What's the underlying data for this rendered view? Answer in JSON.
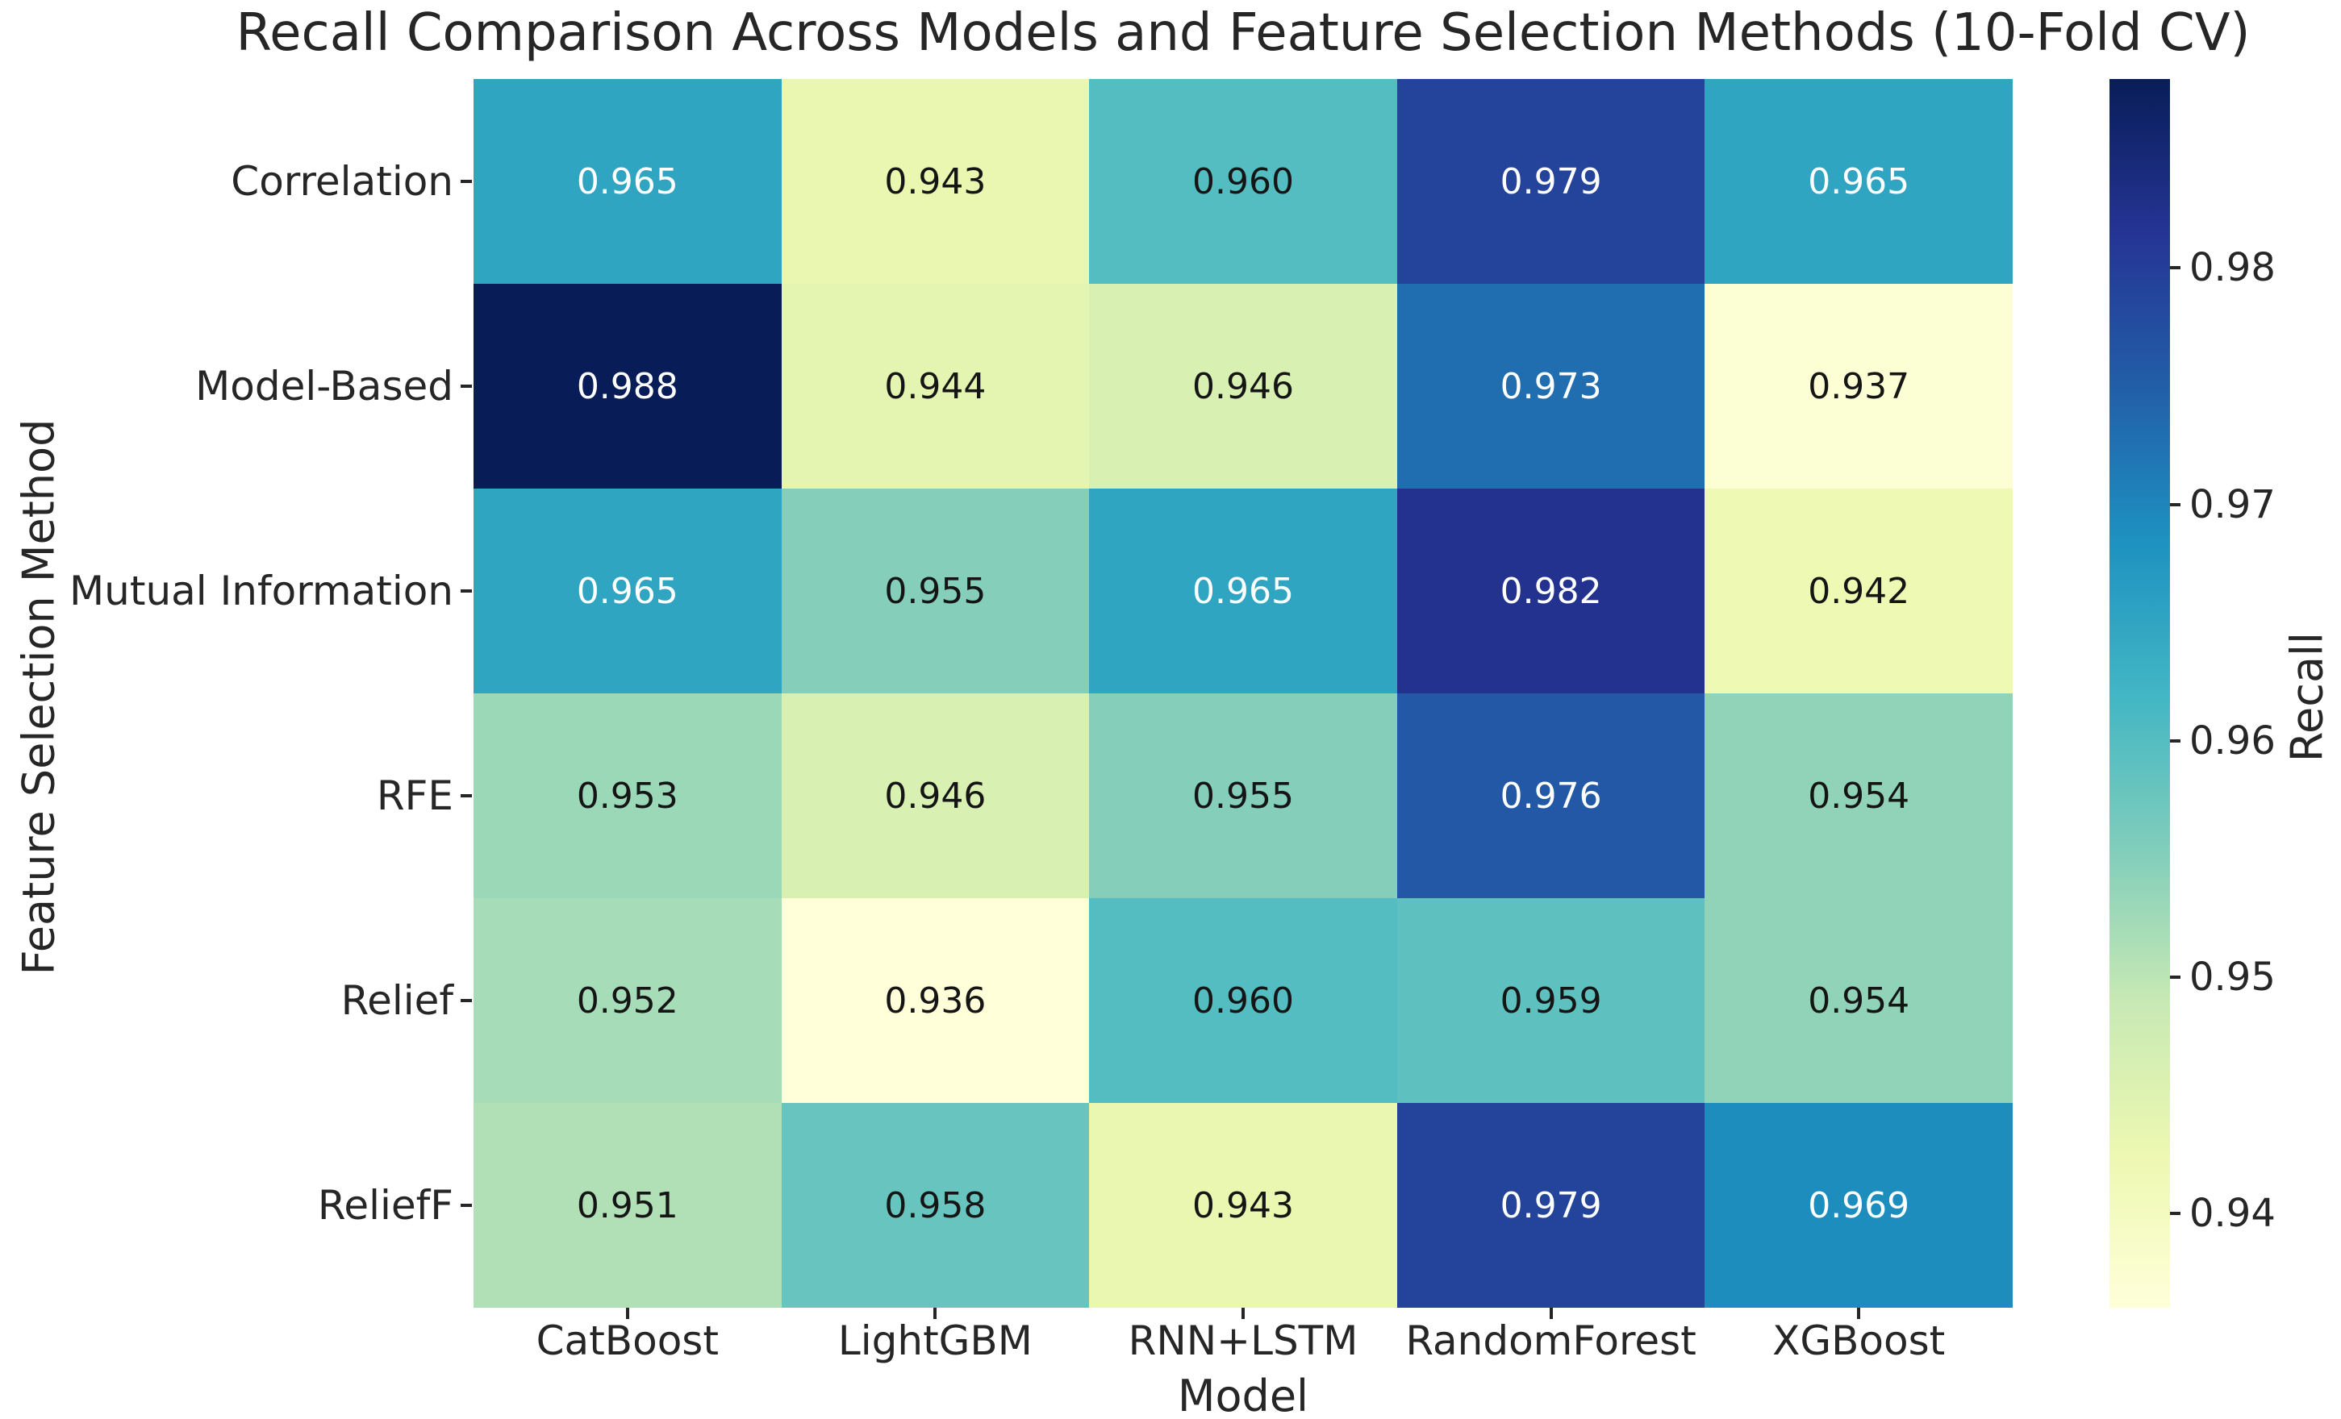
{
  "title": "Recall Comparison Across Models and Feature Selection Methods (10-Fold CV)",
  "chart_data": {
    "type": "heatmap",
    "title": "Recall Comparison Across Models and Feature Selection Methods (10-Fold CV)",
    "xlabel": "Model",
    "ylabel": "Feature Selection Method",
    "columns": [
      "CatBoost",
      "LightGBM",
      "RNN+LSTM",
      "RandomForest",
      "XGBoost"
    ],
    "rows": [
      "Correlation",
      "Model-Based",
      "Mutual Information",
      "RFE",
      "Relief",
      "ReliefF"
    ],
    "values": [
      [
        0.965,
        0.943,
        0.96,
        0.979,
        0.965
      ],
      [
        0.988,
        0.944,
        0.946,
        0.973,
        0.937
      ],
      [
        0.965,
        0.955,
        0.965,
        0.982,
        0.942
      ],
      [
        0.953,
        0.946,
        0.955,
        0.976,
        0.954
      ],
      [
        0.952,
        0.936,
        0.96,
        0.959,
        0.954
      ],
      [
        0.951,
        0.958,
        0.943,
        0.979,
        0.969
      ]
    ],
    "value_decimals": 3,
    "grid": false,
    "colorbar": {
      "label": "Recall",
      "vmin": 0.936,
      "vmax": 0.988,
      "tick_values": [
        0.94,
        0.95,
        0.96,
        0.97,
        0.98
      ],
      "tick_labels": [
        "0.94",
        "0.95",
        "0.96",
        "0.97",
        "0.98"
      ]
    },
    "colormap": {
      "name": "YlGnBu",
      "stops": [
        "#ffffd9",
        "#edf8b1",
        "#c7e9b4",
        "#7fcdbb",
        "#41b6c4",
        "#1d91c0",
        "#225ea8",
        "#253494",
        "#081d58"
      ]
    },
    "annotation_text_colors": {
      "light": "#ffffff",
      "dark": "#151515"
    }
  }
}
